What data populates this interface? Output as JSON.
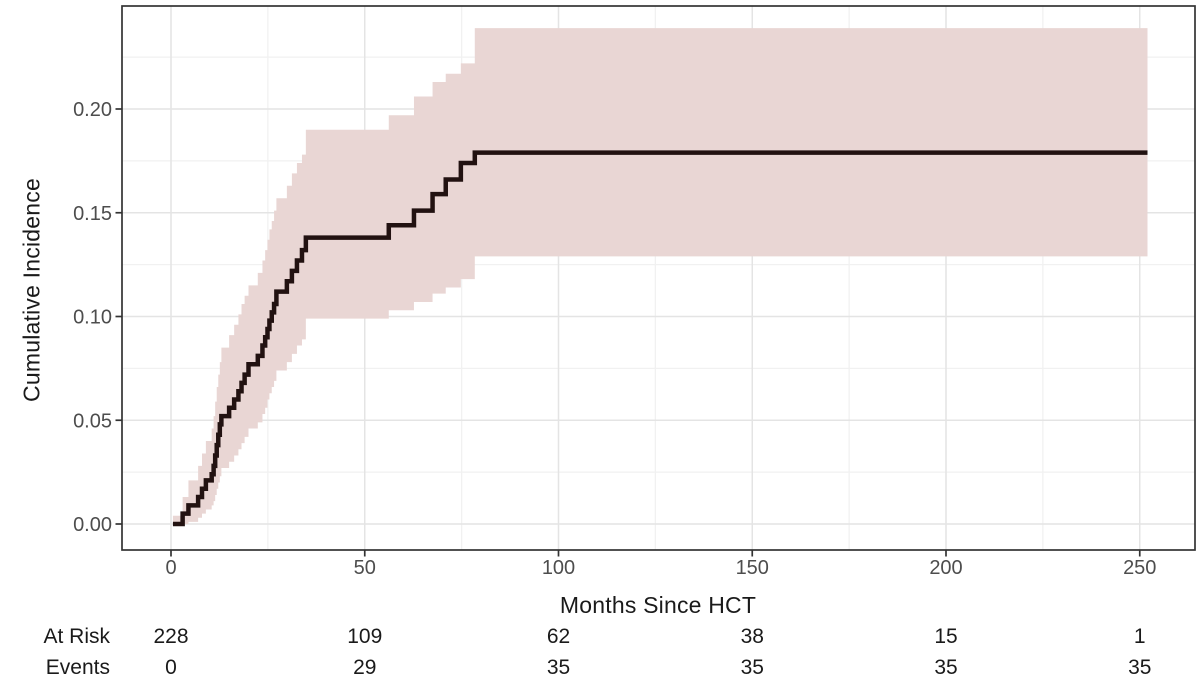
{
  "chart_data": {
    "type": "line",
    "subtype": "cumulative-incidence-step-curve-with-confidence-band",
    "title": "",
    "xlabel": "Months Since HCT",
    "ylabel": "Cumulative Incidence",
    "x_ticks": [
      0,
      50,
      100,
      150,
      200,
      250
    ],
    "x_minor_ticks": [
      25,
      75,
      125,
      175,
      225
    ],
    "y_ticks": [
      "0.00",
      "0.05",
      "0.10",
      "0.15",
      "0.20"
    ],
    "y_tick_values": [
      0.0,
      0.05,
      0.1,
      0.15,
      0.2
    ],
    "y_minor_ticks": [
      0.025,
      0.075,
      0.125,
      0.175,
      0.225
    ],
    "xlim": [
      -12.6,
      264
    ],
    "ylim": [
      -0.013,
      0.25
    ],
    "grid": "major and minor, light gray on white, black panel border",
    "legend": "none",
    "curve_color": "#221211",
    "band_color": "#e9d6d4",
    "grid_major_color": "#e4e4e4",
    "grid_minor_color": "#f1f1f1",
    "panel_border_color": "#333333",
    "tick_label_color": "#4d4d4d",
    "start_time": 0.5,
    "end_time": 252,
    "final_estimate": 0.179,
    "curve_steps": [
      [
        0.5,
        0.0
      ],
      [
        3,
        0.005
      ],
      [
        4.5,
        0.009
      ],
      [
        7,
        0.013
      ],
      [
        8,
        0.017
      ],
      [
        9,
        0.021
      ],
      [
        10.5,
        0.024
      ],
      [
        11,
        0.028
      ],
      [
        11.4,
        0.033
      ],
      [
        11.8,
        0.038
      ],
      [
        12.2,
        0.043
      ],
      [
        12.6,
        0.048
      ],
      [
        13,
        0.052
      ],
      [
        15,
        0.056
      ],
      [
        16.3,
        0.06
      ],
      [
        17.4,
        0.064
      ],
      [
        18.2,
        0.068
      ],
      [
        19,
        0.072
      ],
      [
        20,
        0.077
      ],
      [
        22.4,
        0.081
      ],
      [
        23.6,
        0.086
      ],
      [
        24.3,
        0.09
      ],
      [
        24.9,
        0.094
      ],
      [
        25.4,
        0.098
      ],
      [
        26,
        0.102
      ],
      [
        26.6,
        0.106
      ],
      [
        27.2,
        0.112
      ],
      [
        29.9,
        0.117
      ],
      [
        31.2,
        0.122
      ],
      [
        32.5,
        0.127
      ],
      [
        33.8,
        0.132
      ],
      [
        34.8,
        0.138
      ],
      [
        56.2,
        0.144
      ],
      [
        62.7,
        0.151
      ],
      [
        67.5,
        0.159
      ],
      [
        70.9,
        0.166
      ],
      [
        74.8,
        0.174
      ],
      [
        78.4,
        0.179
      ]
    ],
    "confidence_band": [
      [
        0.5,
        0.0,
        0.004
      ],
      [
        3,
        0.0,
        0.013
      ],
      [
        4.5,
        0.001,
        0.021
      ],
      [
        7,
        0.003,
        0.028
      ],
      [
        8,
        0.005,
        0.034
      ],
      [
        9,
        0.007,
        0.04
      ],
      [
        10.5,
        0.009,
        0.046
      ],
      [
        11,
        0.011,
        0.052
      ],
      [
        11.4,
        0.014,
        0.059
      ],
      [
        11.8,
        0.017,
        0.066
      ],
      [
        12.2,
        0.02,
        0.072
      ],
      [
        12.6,
        0.023,
        0.078
      ],
      [
        13,
        0.027,
        0.085
      ],
      [
        15,
        0.03,
        0.091
      ],
      [
        16.3,
        0.033,
        0.096
      ],
      [
        17.4,
        0.036,
        0.101
      ],
      [
        18.2,
        0.039,
        0.106
      ],
      [
        19,
        0.042,
        0.11
      ],
      [
        20,
        0.046,
        0.115
      ],
      [
        22.4,
        0.049,
        0.121
      ],
      [
        23.6,
        0.053,
        0.127
      ],
      [
        24.3,
        0.056,
        0.132
      ],
      [
        24.9,
        0.06,
        0.137
      ],
      [
        25.4,
        0.063,
        0.142
      ],
      [
        26,
        0.066,
        0.146
      ],
      [
        26.6,
        0.069,
        0.151
      ],
      [
        27.2,
        0.074,
        0.157
      ],
      [
        29.9,
        0.078,
        0.163
      ],
      [
        31.2,
        0.082,
        0.169
      ],
      [
        32.5,
        0.086,
        0.174
      ],
      [
        33.8,
        0.089,
        0.178
      ],
      [
        34.8,
        0.099,
        0.19
      ],
      [
        56.2,
        0.103,
        0.197
      ],
      [
        62.7,
        0.107,
        0.206
      ],
      [
        67.5,
        0.111,
        0.213
      ],
      [
        70.9,
        0.114,
        0.217
      ],
      [
        74.8,
        0.118,
        0.222
      ],
      [
        78.4,
        0.129,
        0.239
      ]
    ]
  },
  "risk_table": {
    "row_labels": [
      "At Risk",
      "Events"
    ],
    "time_points": [
      0,
      50,
      100,
      150,
      200,
      250
    ],
    "at_risk": [
      "228",
      "109",
      "62",
      "38",
      "15",
      "1"
    ],
    "events": [
      "0",
      "29",
      "35",
      "35",
      "35",
      "35"
    ]
  }
}
